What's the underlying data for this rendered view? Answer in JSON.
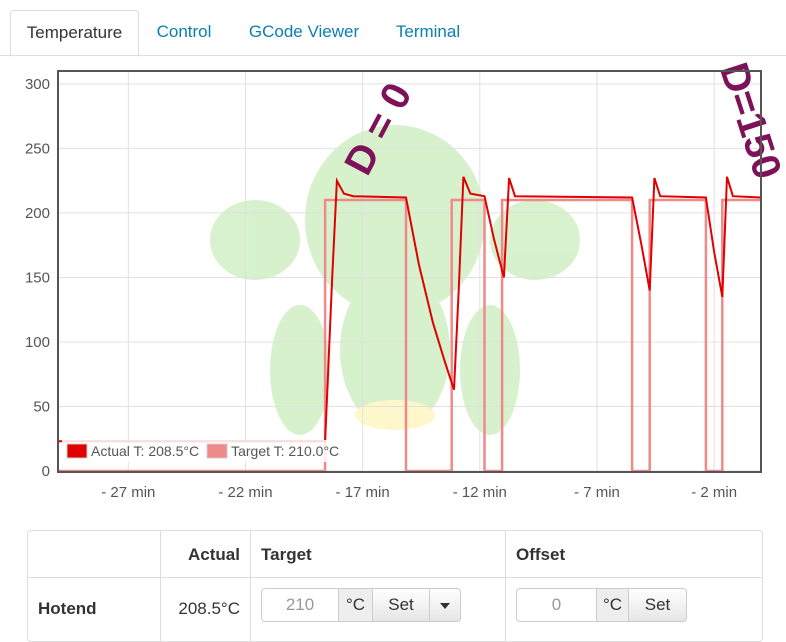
{
  "tabs": [
    "Temperature",
    "Control",
    "GCode Viewer",
    "Terminal"
  ],
  "chart_data": {
    "type": "line",
    "xlim": [
      -30,
      0
    ],
    "xticks": [
      {
        "value": -27,
        "label": "- 27 min"
      },
      {
        "value": -22,
        "label": "- 22 min"
      },
      {
        "value": -17,
        "label": "- 17 min"
      },
      {
        "value": -12,
        "label": "- 12 min"
      },
      {
        "value": -7,
        "label": "- 7 min"
      },
      {
        "value": -2,
        "label": "- 2 min"
      }
    ],
    "ylim": [
      0,
      310
    ],
    "yticks": [
      0,
      50,
      100,
      150,
      200,
      250,
      300
    ],
    "grid": true,
    "legend": "lower left",
    "annotations": [
      "D = 0",
      "D=150"
    ],
    "series": [
      {
        "name": "Actual T: 208.5°C",
        "color": "#e00000",
        "x": [
          -30,
          -18.6,
          -18.3,
          -18.1,
          -17.8,
          -17.4,
          -15.15,
          -14.6,
          -14.0,
          -13.5,
          -13.1,
          -12.9,
          -12.7,
          -12.4,
          -11.8,
          -11.4,
          -10.97,
          -10.75,
          -10.5,
          -5.5,
          -5.1,
          -4.75,
          -4.55,
          -4.3,
          -2.35,
          -2.0,
          -1.65,
          -1.45,
          -1.2,
          0
        ],
        "values": [
          23,
          23,
          150,
          225,
          215,
          213,
          212,
          160,
          115,
          85,
          63,
          140,
          228,
          215,
          213,
          180,
          150,
          227,
          213,
          212,
          175,
          140,
          227,
          213,
          212,
          170,
          135,
          228,
          213,
          212
        ]
      },
      {
        "name": "Target T: 210.0°C",
        "color": "#f08a8a",
        "x": [
          -30,
          -18.6,
          -18.6,
          -15.15,
          -15.15,
          -13.2,
          -13.2,
          -11.8,
          -11.8,
          -11.05,
          -11.05,
          -5.5,
          -5.5,
          -4.75,
          -4.75,
          -2.35,
          -2.35,
          -1.65,
          -1.65,
          0
        ],
        "values": [
          0,
          0,
          210,
          210,
          0,
          0,
          210,
          210,
          0,
          0,
          210,
          210,
          0,
          0,
          210,
          210,
          0,
          0,
          210,
          210
        ]
      }
    ]
  },
  "table": {
    "header": [
      "Actual",
      "Target",
      "Offset"
    ],
    "rows": [
      {
        "label": "Hotend",
        "actual": "208.5°C",
        "target": "210",
        "target_unit": "°C",
        "set": "Set",
        "offset": "0",
        "offset_unit": "°C",
        "offset_set": "Set"
      }
    ]
  }
}
